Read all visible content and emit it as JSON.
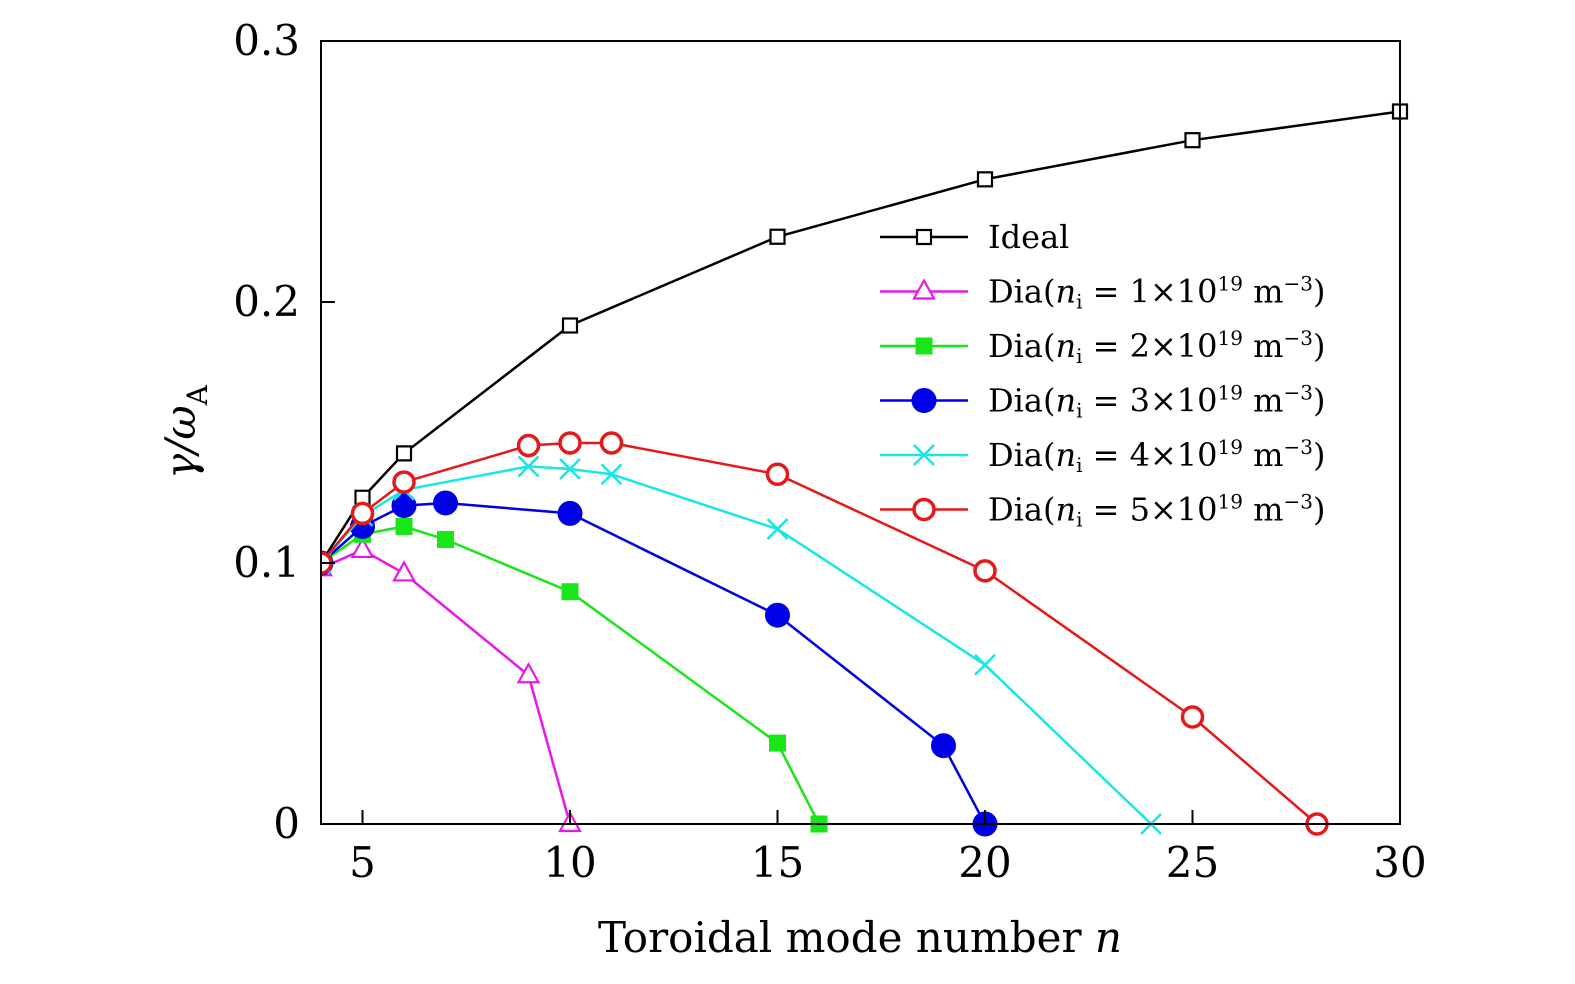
{
  "chart_data": {
    "type": "line",
    "title": "",
    "xlabel": "Toroidal mode number n",
    "ylabel": "γ/ωA",
    "xlim": [
      4,
      30
    ],
    "ylim": [
      0,
      0.3
    ],
    "xticks": [
      5,
      10,
      15,
      20,
      25,
      30
    ],
    "xtick_labels": [
      "5",
      "10",
      "15",
      "20",
      "25",
      "30"
    ],
    "yticks": [
      0,
      0.1,
      0.2,
      0.3
    ],
    "ytick_labels": [
      "0",
      "0.1",
      "0.2",
      "0.3"
    ],
    "grid": false,
    "legend_position": "upper-right",
    "series": [
      {
        "name": "Ideal",
        "color": "#000000",
        "marker": "open-square",
        "x": [
          4,
          5,
          6,
          10,
          15,
          20,
          25,
          30
        ],
        "y": [
          0.1,
          0.125,
          0.142,
          0.191,
          0.225,
          0.247,
          0.262,
          0.273
        ]
      },
      {
        "name": "Dia(ni = 1×10^19 m^−3)",
        "color": "#e619e6",
        "marker": "open-triangle",
        "x": [
          4,
          5,
          6,
          9,
          10
        ],
        "y": [
          0.098,
          0.105,
          0.096,
          0.057,
          0.0
        ]
      },
      {
        "name": "Dia(ni = 2×10^19 m^−3)",
        "color": "#19e619",
        "marker": "filled-square",
        "x": [
          4,
          5,
          6,
          7,
          10,
          15,
          16
        ],
        "y": [
          0.1,
          0.111,
          0.114,
          0.109,
          0.089,
          0.031,
          0.0
        ]
      },
      {
        "name": "Dia(ni = 3×10^19 m^−3)",
        "color": "#0000e6",
        "marker": "filled-circle",
        "x": [
          4,
          5,
          6,
          7,
          10,
          15,
          19,
          20
        ],
        "y": [
          0.1,
          0.114,
          0.122,
          0.123,
          0.119,
          0.08,
          0.03,
          0.0
        ]
      },
      {
        "name": "Dia(ni = 4×10^19 m^−3)",
        "color": "#19e6e6",
        "marker": "cross",
        "x": [
          4,
          5,
          6,
          9,
          10,
          11,
          15,
          20,
          24
        ],
        "y": [
          0.1,
          0.118,
          0.128,
          0.137,
          0.136,
          0.134,
          0.113,
          0.061,
          0.0
        ]
      },
      {
        "name": "Dia(ni = 5×10^19 m^−3)",
        "color": "#e61919",
        "marker": "open-circle",
        "x": [
          4,
          5,
          6,
          9,
          10,
          11,
          15,
          20,
          25,
          28
        ],
        "y": [
          0.1,
          0.119,
          0.131,
          0.145,
          0.146,
          0.146,
          0.134,
          0.097,
          0.041,
          0.0
        ]
      }
    ],
    "legend": [
      {
        "prefix": "Ideal",
        "coef": "",
        "exp": ""
      },
      {
        "prefix": "Dia(",
        "coef": "1",
        "exp": "19"
      },
      {
        "prefix": "Dia(",
        "coef": "2",
        "exp": "19"
      },
      {
        "prefix": "Dia(",
        "coef": "3",
        "exp": "19"
      },
      {
        "prefix": "Dia(",
        "coef": "4",
        "exp": "19"
      },
      {
        "prefix": "Dia(",
        "coef": "5",
        "exp": "19"
      }
    ]
  }
}
